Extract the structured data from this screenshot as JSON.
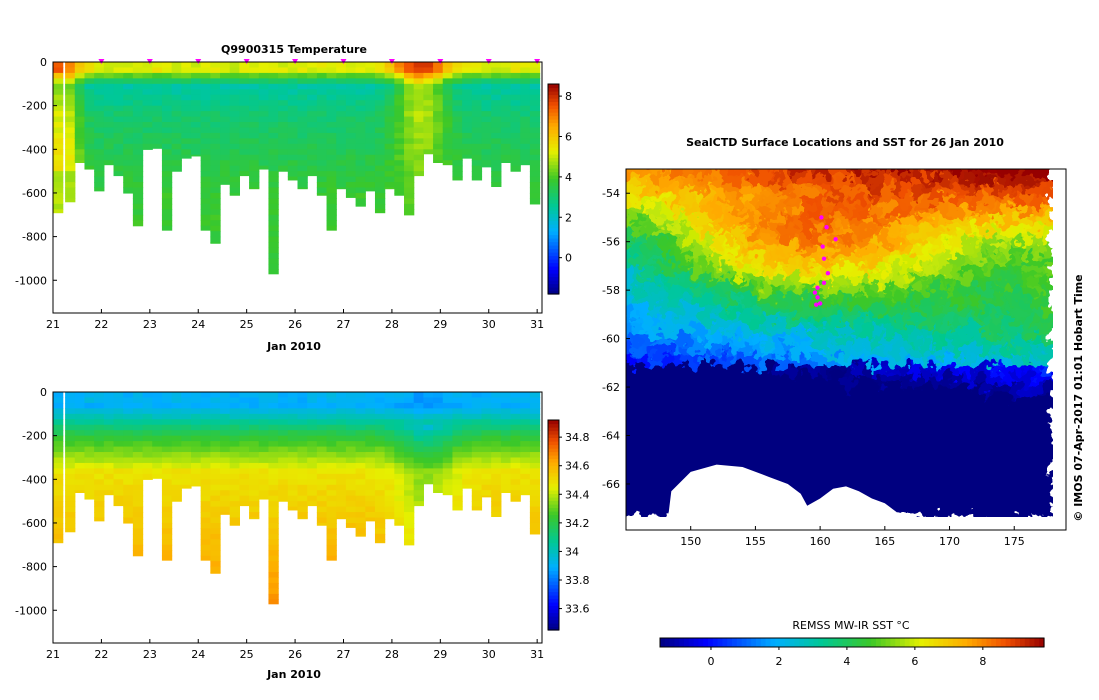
{
  "chart_data": [
    {
      "type": "heatmap",
      "title": "Q9900315  Temperature",
      "xlabel": "Jan 2010",
      "x_ticks": [
        21,
        22,
        23,
        24,
        25,
        26,
        27,
        28,
        29,
        30,
        31
      ],
      "y_ticks": [
        0,
        -200,
        -400,
        -600,
        -800,
        -1000
      ],
      "xlim": [
        21,
        31.1
      ],
      "ylim": [
        -1150,
        0
      ],
      "colorbar": {
        "ticks": [
          0,
          2,
          4,
          6,
          8
        ],
        "range": [
          -1.8,
          8.6
        ]
      },
      "surface_markers": [
        22,
        23,
        24,
        25,
        26,
        27,
        28,
        29,
        30,
        31
      ],
      "profiles": {
        "times": [
          21.1,
          21.35,
          21.55,
          21.75,
          21.95,
          22.15,
          22.35,
          22.55,
          22.75,
          22.95,
          23.15,
          23.35,
          23.55,
          23.75,
          23.95,
          24.15,
          24.35,
          24.55,
          24.75,
          24.95,
          25.15,
          25.35,
          25.55,
          25.75,
          25.95,
          26.15,
          26.35,
          26.55,
          26.75,
          26.95,
          27.15,
          27.35,
          27.55,
          27.75,
          27.95,
          28.15,
          28.35,
          28.55,
          28.75,
          28.95,
          29.15,
          29.35,
          29.55,
          29.75,
          29.95,
          30.15,
          30.35,
          30.55,
          30.75,
          30.95
        ],
        "max_depths": [
          690,
          640,
          460,
          490,
          590,
          470,
          520,
          600,
          750,
          400,
          395,
          770,
          500,
          440,
          430,
          770,
          830,
          560,
          610,
          520,
          580,
          490,
          970,
          500,
          540,
          580,
          520,
          610,
          770,
          580,
          620,
          660,
          590,
          690,
          580,
          610,
          700,
          520,
          420,
          460,
          470,
          540,
          440,
          540,
          480,
          570,
          460,
          500,
          470,
          650
        ]
      }
    },
    {
      "type": "heatmap",
      "title": "",
      "xlabel": "Jan 2010",
      "x_ticks": [
        21,
        22,
        23,
        24,
        25,
        26,
        27,
        28,
        29,
        30,
        31
      ],
      "y_ticks": [
        0,
        -200,
        -400,
        -600,
        -800,
        -1000
      ],
      "xlim": [
        21,
        31.1
      ],
      "ylim": [
        -1150,
        0
      ],
      "colorbar": {
        "ticks": [
          33.6,
          33.8,
          34,
          34.2,
          34.4,
          34.6,
          34.8
        ],
        "range": [
          33.45,
          34.92
        ]
      }
    },
    {
      "type": "heatmap",
      "title": "SealCTD Surface Locations and SST for 26 Jan 2010",
      "x_ticks": [
        150,
        155,
        160,
        165,
        170,
        175
      ],
      "y_ticks": [
        -54,
        -56,
        -58,
        -60,
        -62,
        -64,
        -66
      ],
      "xlim": [
        145,
        179
      ],
      "ylim": [
        -67.9,
        -53
      ],
      "colorbar": {
        "label": "REMSS MW-IR SST °C",
        "ticks": [
          0,
          2,
          4,
          6,
          8
        ],
        "range": [
          -1.5,
          9.8
        ]
      },
      "track": {
        "lon": [
          160.1,
          160.5,
          161.2,
          160.2,
          160.3,
          160.6,
          160.3,
          159.8,
          159.6,
          159.8,
          160.0,
          159.7
        ],
        "lat": [
          -55.0,
          -55.4,
          -55.9,
          -56.2,
          -56.7,
          -57.3,
          -57.7,
          -57.9,
          -58.1,
          -58.3,
          -58.55,
          -58.6
        ]
      }
    }
  ],
  "credit": "© IMOS 07-Apr-2017 01:01 Hobart Time",
  "colors": {
    "marker": "#ff00ff",
    "land": "#ffffff"
  }
}
